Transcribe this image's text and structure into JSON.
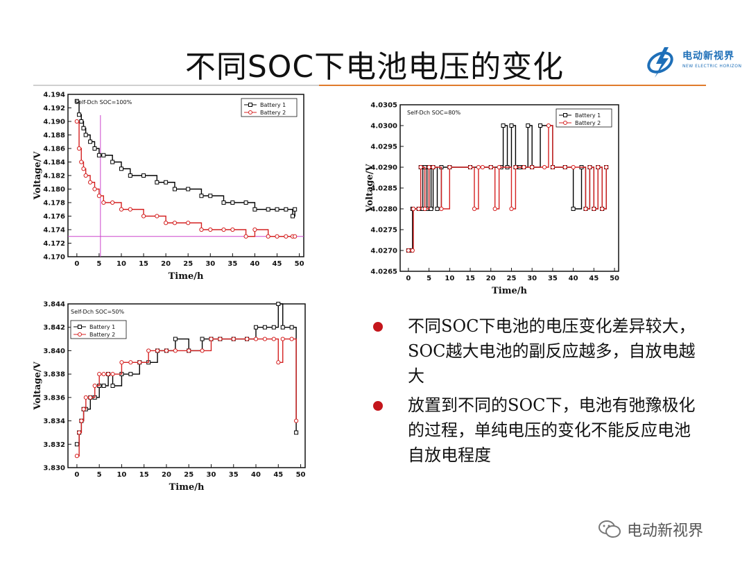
{
  "slide": {
    "title": "不同SOC下电池电压的变化",
    "logo": {
      "cn": "电动新视界",
      "en": "NEW ELECTRIC HORIZON"
    },
    "watermark": "电动新视界",
    "bullets": [
      "不同SOC下电池的电压变化差异较大，SOC越大电池的副反应越多，自放电越大",
      "放置到不同的SOC下，电池有弛豫极化的过程，单纯电压的变化不能反应电池自放电程度"
    ],
    "colors": {
      "accent_rule": "#e07a2a",
      "bullet": "#c4161c",
      "logo": "#1e6fb8"
    }
  },
  "chart_data": [
    {
      "type": "line",
      "annotation": "Self-Dch SOC=100%",
      "xlabel": "Time/h",
      "ylabel": "Voltage/V",
      "xlim": [
        -2,
        51
      ],
      "ylim": [
        4.17,
        4.194
      ],
      "xticks": [
        0,
        5,
        10,
        15,
        20,
        25,
        30,
        35,
        40,
        45,
        50
      ],
      "yticks": [
        4.17,
        4.172,
        4.174,
        4.176,
        4.178,
        4.18,
        4.182,
        4.184,
        4.186,
        4.188,
        4.19,
        4.192,
        4.194
      ],
      "ytick_decimals": 3,
      "legend": "top-right",
      "reference_lines": {
        "x": 5.3,
        "y": 4.173,
        "color": "#cc44cc"
      },
      "series": [
        {
          "name": "Battery 1",
          "color": "#000000",
          "marker": "square",
          "x": [
            0,
            0.5,
            1,
            1.5,
            2,
            3,
            4,
            5,
            6,
            8,
            10,
            12,
            15,
            18,
            20,
            22,
            25,
            28,
            30,
            33,
            35,
            38,
            40,
            43,
            45,
            47,
            48.5,
            49
          ],
          "y": [
            4.193,
            4.191,
            4.19,
            4.189,
            4.188,
            4.187,
            4.186,
            4.185,
            4.185,
            4.184,
            4.183,
            4.182,
            4.182,
            4.181,
            4.181,
            4.18,
            4.18,
            4.179,
            4.179,
            4.178,
            4.178,
            4.178,
            4.177,
            4.177,
            4.177,
            4.177,
            4.176,
            4.177
          ]
        },
        {
          "name": "Battery 2",
          "color": "#d42020",
          "marker": "circle",
          "x": [
            0,
            0.5,
            1,
            1.5,
            2,
            3,
            4,
            5,
            6,
            8,
            10,
            12,
            15,
            18,
            20,
            22,
            25,
            28,
            30,
            33,
            35,
            38,
            40,
            43,
            45,
            47,
            48.5,
            49
          ],
          "y": [
            4.19,
            4.186,
            4.184,
            4.183,
            4.182,
            4.181,
            4.18,
            4.179,
            4.178,
            4.178,
            4.177,
            4.177,
            4.176,
            4.176,
            4.175,
            4.175,
            4.175,
            4.174,
            4.174,
            4.174,
            4.174,
            4.173,
            4.174,
            4.173,
            4.173,
            4.173,
            4.173,
            4.173
          ]
        }
      ]
    },
    {
      "type": "line",
      "annotation": "Self-Dch SOC=80%",
      "xlabel": "Time/h",
      "ylabel": "Voltage/V",
      "xlim": [
        -2,
        51
      ],
      "ylim": [
        4.0265,
        4.0305
      ],
      "xticks": [
        0,
        5,
        10,
        15,
        20,
        25,
        30,
        35,
        40,
        45,
        50
      ],
      "yticks": [
        4.0265,
        4.027,
        4.0275,
        4.028,
        4.0285,
        4.029,
        4.0295,
        4.03,
        4.0305
      ],
      "ytick_decimals": 4,
      "legend": "top-right",
      "series": [
        {
          "name": "Battery 1",
          "color": "#000000",
          "marker": "square",
          "x": [
            0,
            0.8,
            1,
            2.5,
            3,
            3.5,
            4,
            4.5,
            5,
            5.5,
            6,
            7,
            8,
            10,
            15,
            20,
            22.5,
            23,
            24,
            25,
            26,
            27,
            28,
            29,
            30,
            32,
            35,
            38,
            40,
            42,
            43,
            44,
            45,
            46,
            47,
            48
          ],
          "y": [
            4.027,
            4.027,
            4.028,
            4.028,
            4.029,
            4.028,
            4.029,
            4.028,
            4.029,
            4.028,
            4.029,
            4.028,
            4.029,
            4.029,
            4.029,
            4.029,
            4.029,
            4.03,
            4.029,
            4.03,
            4.029,
            4.029,
            4.029,
            4.03,
            4.029,
            4.03,
            4.029,
            4.029,
            4.028,
            4.029,
            4.028,
            4.029,
            4.028,
            4.029,
            4.028,
            4.029
          ]
        },
        {
          "name": "Battery 2",
          "color": "#d42020",
          "marker": "circle",
          "x": [
            0,
            1,
            1.2,
            2.5,
            3,
            4,
            5,
            6,
            8,
            10,
            15,
            16,
            17,
            18,
            20,
            21,
            22,
            25,
            26,
            28,
            30,
            33,
            34,
            35,
            38,
            40,
            43,
            44,
            45,
            46,
            47,
            48
          ],
          "y": [
            4.027,
            4.027,
            4.028,
            4.028,
            4.029,
            4.028,
            4.029,
            4.029,
            4.028,
            4.029,
            4.029,
            4.028,
            4.029,
            4.029,
            4.029,
            4.028,
            4.029,
            4.028,
            4.029,
            4.029,
            4.029,
            4.029,
            4.03,
            4.029,
            4.029,
            4.029,
            4.028,
            4.029,
            4.028,
            4.029,
            4.028,
            4.029
          ]
        }
      ]
    },
    {
      "type": "line",
      "annotation": "Self-Dch SOC=50%",
      "xlabel": "Time/h",
      "ylabel": "Voltage/V",
      "xlim": [
        -2,
        51
      ],
      "ylim": [
        3.83,
        3.844
      ],
      "xticks": [
        0,
        5,
        10,
        15,
        20,
        25,
        30,
        35,
        40,
        45,
        50
      ],
      "yticks": [
        3.83,
        3.832,
        3.834,
        3.836,
        3.838,
        3.84,
        3.842,
        3.844
      ],
      "ytick_decimals": 3,
      "legend": "top-left",
      "series": [
        {
          "name": "Battery 1",
          "color": "#000000",
          "marker": "square",
          "x": [
            0,
            0.5,
            1,
            1.5,
            2,
            3,
            4,
            5,
            6,
            7,
            8,
            10,
            12,
            14,
            16,
            18,
            20,
            22,
            25,
            28,
            30,
            32,
            35,
            38,
            40,
            42,
            44,
            45,
            46,
            48,
            49
          ],
          "y": [
            3.832,
            3.833,
            3.834,
            3.835,
            3.835,
            3.836,
            3.836,
            3.837,
            3.837,
            3.838,
            3.837,
            3.838,
            3.838,
            3.839,
            3.839,
            3.84,
            3.84,
            3.841,
            3.84,
            3.841,
            3.841,
            3.841,
            3.841,
            3.841,
            3.842,
            3.842,
            3.842,
            3.844,
            3.842,
            3.842,
            3.833
          ]
        },
        {
          "name": "Battery 2",
          "color": "#d42020",
          "marker": "circle",
          "x": [
            0,
            0.5,
            1,
            1.5,
            2,
            3,
            4,
            5,
            6,
            7,
            8,
            10,
            12,
            14,
            16,
            18,
            20,
            22,
            25,
            28,
            30,
            32,
            35,
            38,
            40,
            42,
            44,
            45,
            46,
            48,
            49
          ],
          "y": [
            3.831,
            3.833,
            3.834,
            3.835,
            3.836,
            3.836,
            3.837,
            3.838,
            3.838,
            3.838,
            3.838,
            3.839,
            3.839,
            3.839,
            3.84,
            3.84,
            3.84,
            3.84,
            3.84,
            3.84,
            3.841,
            3.841,
            3.841,
            3.841,
            3.841,
            3.841,
            3.841,
            3.839,
            3.841,
            3.841,
            3.834
          ]
        }
      ]
    }
  ]
}
